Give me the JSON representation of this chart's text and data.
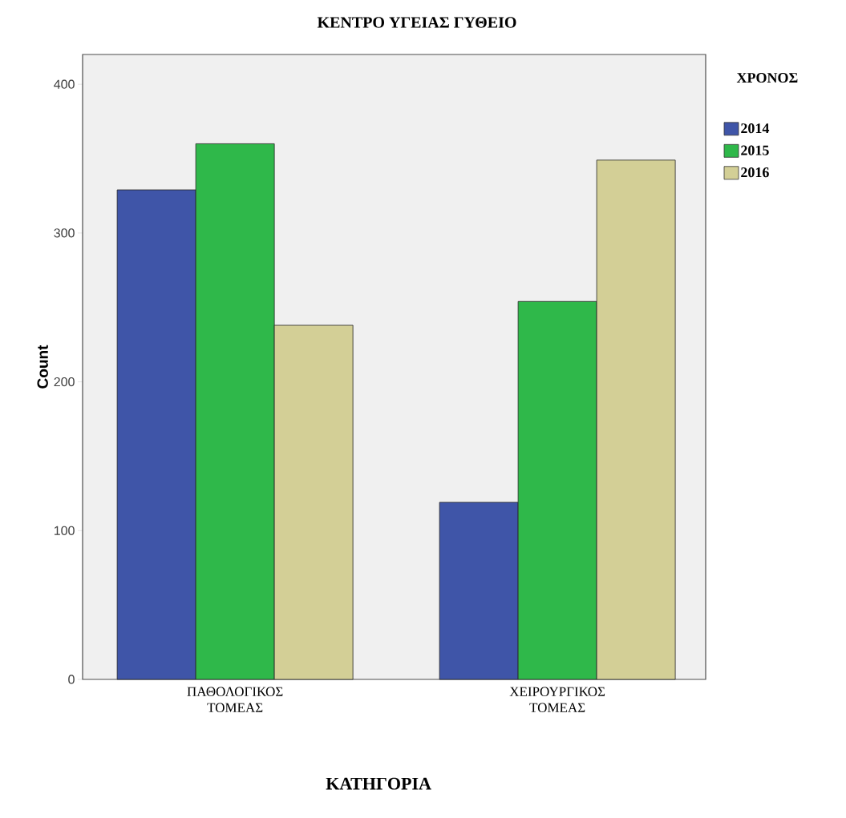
{
  "chart_data": {
    "type": "bar",
    "title": "ΚΕΝΤΡΟ ΥΓΕΙΑΣ  ΓΥΘΕΙΟ",
    "xlabel": "ΚΑΤΗΓΟΡΙΑ",
    "ylabel": "Count",
    "legend_title": "ΧΡΟΝΟΣ",
    "categories": [
      "ΠΑΘΟΛΟΓΙΚΟΣ ΤΟΜΕΑΣ",
      "ΧΕΙΡΟΥΡΓΙΚΟΣ ΤΟΜΕΑΣ"
    ],
    "series": [
      {
        "name": "2014",
        "color": "#3f55a8",
        "values": [
          329,
          119
        ]
      },
      {
        "name": "2015",
        "color": "#2fb84a",
        "values": [
          360,
          254
        ]
      },
      {
        "name": "2016",
        "color": "#d3cf96",
        "values": [
          238,
          349
        ]
      }
    ],
    "ylim": [
      0,
      420
    ],
    "yticks": [
      0,
      100,
      200,
      300,
      400
    ],
    "legend": "right"
  }
}
